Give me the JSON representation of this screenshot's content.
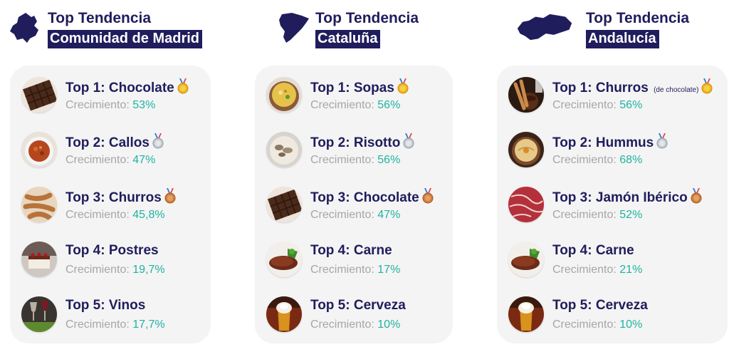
{
  "colors": {
    "navy": "#1f1d5c",
    "teal": "#1fb3a2",
    "gray": "#a6a6a6",
    "panel": "#f4f4f4"
  },
  "columns": [
    {
      "region_icon": "madrid-map-icon",
      "title": "Top Tendencia",
      "region": "Comunidad de Madrid",
      "items": [
        {
          "rank": "Top 1:",
          "name": "Chocolate",
          "note": "",
          "medal": "gold",
          "food_icon": "chocolate",
          "growth_label": "Crecimiento:",
          "growth": "53%"
        },
        {
          "rank": "Top 2:",
          "name": "Callos",
          "note": "",
          "medal": "silver",
          "food_icon": "callos",
          "growth_label": "Crecimiento:",
          "growth": "47%"
        },
        {
          "rank": "Top 3:",
          "name": "Churros",
          "note": "",
          "medal": "bronze",
          "food_icon": "churros",
          "growth_label": "Crecimiento:",
          "growth": "45,8%"
        },
        {
          "rank": "Top 4:",
          "name": "Postres",
          "note": "",
          "medal": "",
          "food_icon": "postres",
          "growth_label": "Crecimiento:",
          "growth": "19,7%"
        },
        {
          "rank": "Top 5:",
          "name": "Vinos",
          "note": "",
          "medal": "",
          "food_icon": "vinos",
          "growth_label": "Crecimiento:",
          "growth": "17,7%"
        }
      ]
    },
    {
      "region_icon": "cataluna-map-icon",
      "title": "Top Tendencia",
      "region": "Cataluña",
      "items": [
        {
          "rank": "Top 1:",
          "name": "Sopas",
          "note": "",
          "medal": "gold",
          "food_icon": "sopas",
          "growth_label": "Crecimiento:",
          "growth": "56%"
        },
        {
          "rank": "Top 2:",
          "name": "Risotto",
          "note": "",
          "medal": "silver",
          "food_icon": "risotto",
          "growth_label": "Crecimiento:",
          "growth": "56%"
        },
        {
          "rank": "Top 3:",
          "name": "Chocolate",
          "note": "",
          "medal": "bronze",
          "food_icon": "chocolate",
          "growth_label": "Crecimiento:",
          "growth": "47%"
        },
        {
          "rank": "Top 4:",
          "name": "Carne",
          "note": "",
          "medal": "",
          "food_icon": "carne",
          "growth_label": "Crecimiento:",
          "growth": "17%"
        },
        {
          "rank": "Top 5:",
          "name": "Cerveza",
          "note": "",
          "medal": "",
          "food_icon": "cerveza",
          "growth_label": "Crecimiento:",
          "growth": "10%"
        }
      ]
    },
    {
      "region_icon": "andalucia-map-icon",
      "title": "Top Tendencia",
      "region": "Andalucía",
      "items": [
        {
          "rank": "Top 1:",
          "name": "Churros",
          "note": "(de chocolate)",
          "medal": "gold",
          "food_icon": "churros-chocolate",
          "growth_label": "Crecimiento:",
          "growth": "56%"
        },
        {
          "rank": "Top 2:",
          "name": "Hummus",
          "note": "",
          "medal": "silver",
          "food_icon": "hummus",
          "growth_label": "Crecimiento:",
          "growth": "68%"
        },
        {
          "rank": "Top 3:",
          "name": "Jamón Ibérico",
          "note": "",
          "medal": "bronze",
          "food_icon": "jamon",
          "growth_label": "Crecimiento:",
          "growth": "52%"
        },
        {
          "rank": "Top 4:",
          "name": "Carne",
          "note": "",
          "medal": "",
          "food_icon": "carne",
          "growth_label": "Crecimiento:",
          "growth": "21%"
        },
        {
          "rank": "Top 5:",
          "name": "Cerveza",
          "note": "",
          "medal": "",
          "food_icon": "cerveza",
          "growth_label": "Crecimiento:",
          "growth": "10%"
        }
      ]
    }
  ]
}
